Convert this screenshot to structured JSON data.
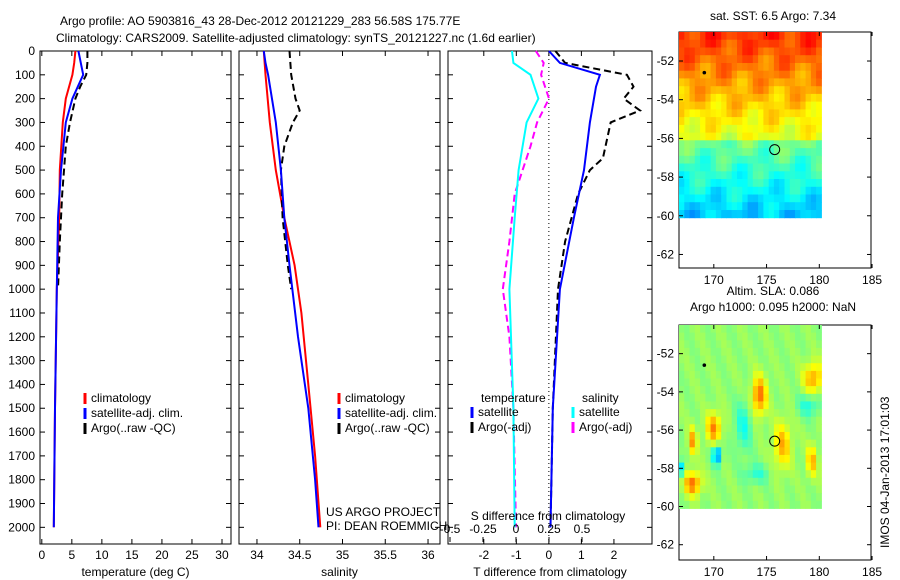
{
  "title_line1": "Argo profile: AO 5903816_43 28-Dec-2012 20121229_283 56.58S 175.77E",
  "title_line2": "Climatology: CARS2009. Satellite-adjusted climatology: synTS_20121227.nc (1.6d earlier)",
  "colors": {
    "clim": "#ff0000",
    "sat": "#0000ff",
    "argo": "#000000",
    "sal_sat": "#00ffff",
    "sal_argo": "#ff00ff"
  },
  "chart_data": [
    {
      "type": "line",
      "id": "temperature",
      "xlabel": "temperature (deg C)",
      "ylabel": "",
      "xlim": [
        -0.3,
        31.5
      ],
      "ylim": [
        0,
        2070
      ],
      "xticks": [
        0,
        5,
        10,
        15,
        20,
        25,
        30
      ],
      "yticks": [
        0,
        100,
        200,
        300,
        400,
        500,
        600,
        700,
        800,
        900,
        1000,
        1100,
        1200,
        1300,
        1400,
        1500,
        1600,
        1700,
        1800,
        1900,
        2000
      ],
      "legend": [
        "climatology",
        "satellite-adj. clim.",
        "Argo(..raw -QC)"
      ],
      "series": [
        {
          "name": "climatology",
          "depth": [
            0,
            50,
            100,
            200,
            300,
            500,
            700,
            1000,
            1500,
            2000
          ],
          "values": [
            5.6,
            5.4,
            5.1,
            4.0,
            3.5,
            3.0,
            2.9,
            2.5,
            2.2,
            2.0
          ]
        },
        {
          "name": "satellite-adj. clim.",
          "depth": [
            0,
            50,
            100,
            150,
            200,
            300,
            500,
            700,
            1000,
            1500,
            2000
          ],
          "values": [
            6.1,
            6.5,
            6.9,
            6.0,
            5.1,
            4.0,
            3.2,
            2.7,
            2.5,
            2.2,
            2.0
          ]
        },
        {
          "name": "Argo(..raw -QC)",
          "depth": [
            0,
            50,
            100,
            150,
            200,
            300,
            400,
            500,
            600,
            800,
            1000
          ],
          "values": [
            7.6,
            7.6,
            7.4,
            6.4,
            5.6,
            4.7,
            4.0,
            3.7,
            3.4,
            3.0,
            2.7
          ]
        }
      ]
    },
    {
      "type": "line",
      "id": "salinity",
      "xlabel": "salinity",
      "xlim": [
        33.79,
        36.14
      ],
      "ylim": [
        0,
        2070
      ],
      "xticks": [
        34,
        34.5,
        35,
        35.5,
        36
      ],
      "xticklabels": [
        "34",
        "34.5",
        "35",
        "35.5",
        "36"
      ],
      "legend": [
        "climatology",
        "satellite-adj. clim.",
        "Argo(..raw -QC)"
      ],
      "annotation": [
        "US ARGO PROJECT",
        "PI: DEAN ROEMMICH"
      ],
      "series": [
        {
          "name": "climatology",
          "depth": [
            0,
            100,
            300,
            500,
            700,
            900,
            1100,
            1400,
            1700,
            2000
          ],
          "values": [
            34.08,
            34.1,
            34.15,
            34.22,
            34.32,
            34.44,
            34.52,
            34.6,
            34.68,
            34.74
          ]
        },
        {
          "name": "satellite-adj. clim.",
          "depth": [
            0,
            50,
            100,
            300,
            500,
            700,
            900,
            1200,
            1500,
            1800,
            2000
          ],
          "values": [
            34.08,
            34.1,
            34.13,
            34.22,
            34.28,
            34.32,
            34.38,
            34.48,
            34.6,
            34.68,
            34.72
          ]
        },
        {
          "name": "Argo(..raw -QC)",
          "depth": [
            0,
            100,
            200,
            250,
            300,
            400,
            500,
            700,
            900,
            1000
          ],
          "values": [
            34.38,
            34.4,
            34.45,
            34.5,
            34.42,
            34.32,
            34.28,
            34.3,
            34.36,
            34.4
          ]
        }
      ]
    },
    {
      "type": "line",
      "id": "difference",
      "xlabel": "T difference from climatology",
      "x2label": "S difference from climatology",
      "xlim": [
        -3.1,
        3.17
      ],
      "x2lim": [
        -0.5152,
        1.0303
      ],
      "ylim": [
        0,
        2070
      ],
      "xticks": [
        -2,
        -1,
        0,
        1,
        2
      ],
      "x2ticks": [
        -0.5,
        -0.25,
        0,
        0.25,
        0.5
      ],
      "x2ticklabels": [
        "-0.5",
        "-0.25",
        "0",
        "0.25",
        "0.5"
      ],
      "legend": {
        "temperature_header": "temperature",
        "salinity_header": "salinity",
        "t_sat": "satellite",
        "t_argo": "Argo(-adj)",
        "s_sat": "satellite",
        "s_argo": "Argo(-adj)"
      },
      "series": [
        {
          "name": "T satellite",
          "axis": "T",
          "depth": [
            0,
            50,
            100,
            150,
            300,
            500,
            700,
            1000,
            1500,
            2000
          ],
          "values": [
            0,
            0.34,
            1.57,
            1.45,
            1.26,
            1.08,
            0.77,
            0.34,
            0.12,
            0.05
          ]
        },
        {
          "name": "T Argo(-adj)",
          "axis": "T",
          "depth": [
            0,
            50,
            100,
            150,
            200,
            250,
            300,
            450,
            500,
            600,
            800,
            1000,
            1500,
            2000
          ],
          "values": [
            0.2,
            0.5,
            2.4,
            2.6,
            2.3,
            2.8,
            1.9,
            1.66,
            1.26,
            0.9,
            0.5,
            0.28,
            0.12,
            0.05
          ]
        },
        {
          "name": "S satellite",
          "axis": "S",
          "depth": [
            0,
            50,
            100,
            200,
            300,
            500,
            700,
            1000,
            1500,
            2000
          ],
          "values": [
            -0.03,
            -0.02,
            0.11,
            0.17,
            0.08,
            0.02,
            -0.01,
            -0.05,
            -0.02,
            -0.01
          ]
        },
        {
          "name": "S Argo(-adj)",
          "axis": "S",
          "depth": [
            0,
            50,
            100,
            200,
            300,
            400,
            600,
            800,
            1000,
            1200,
            1500,
            2000
          ],
          "values": [
            0.15,
            0.21,
            0.19,
            0.25,
            0.16,
            0.11,
            -0.01,
            -0.05,
            -0.1,
            -0.05,
            -0.02,
            0
          ]
        }
      ]
    },
    {
      "type": "heatmap",
      "id": "sst-map",
      "title": "sat. SST: 6.5 Argo: 7.34",
      "xlim": [
        166.7,
        184.9
      ],
      "ylim": [
        -62.7,
        -50.5
      ],
      "xticks": [
        170,
        175,
        180,
        185
      ],
      "yticks": [
        -52,
        -54,
        -56,
        -58,
        -60,
        -62
      ],
      "data_extent": {
        "lon": [
          166.7,
          180.2
        ],
        "lat": [
          -60.1,
          -50.5
        ]
      },
      "profile_position": {
        "lon": 175.77,
        "lat": -56.58
      },
      "other_float": {
        "lon": 169.1,
        "lat": -52.6
      }
    },
    {
      "type": "heatmap",
      "id": "sla-map",
      "title": "Altim. SLA: 0.086",
      "subtitle": "Argo h1000: 0.095 h2000: NaN",
      "xlim": [
        166.7,
        184.9
      ],
      "ylim": [
        -62.8,
        -50.5
      ],
      "xticks": [
        170,
        175,
        180,
        185
      ],
      "yticks": [
        -52,
        -54,
        -56,
        -58,
        -60,
        -62
      ],
      "data_extent": {
        "lon": [
          166.7,
          180.2
        ],
        "lat": [
          -60.1,
          -50.5
        ]
      },
      "profile_position": {
        "lon": 175.77,
        "lat": -56.58
      },
      "other_float": {
        "lon": 169.1,
        "lat": -52.6
      }
    }
  ],
  "footer_stamp": "IMOS 04-Jan-2013 17:01:03"
}
